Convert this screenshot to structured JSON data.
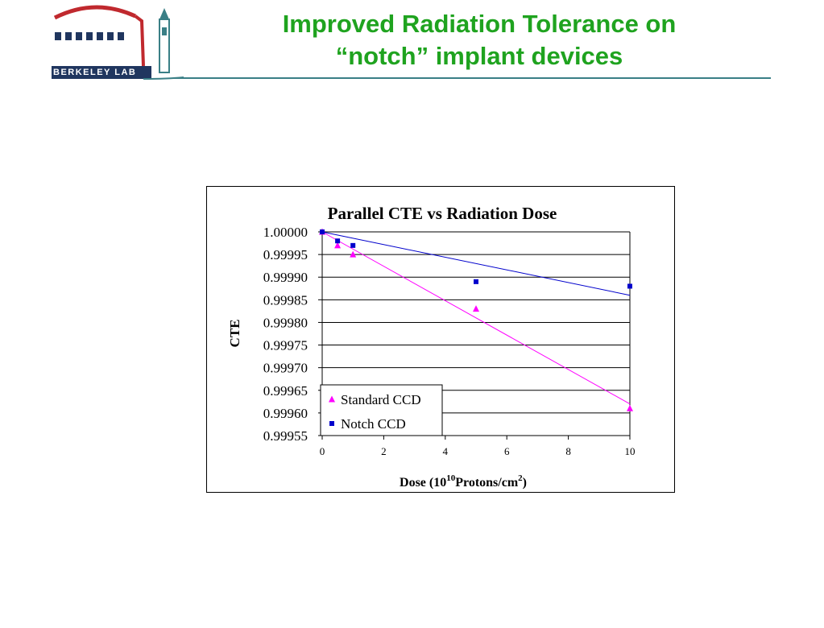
{
  "slide": {
    "title_line1": "Improved Radiation Tolerance on",
    "title_line2": "“notch” implant devices"
  },
  "logo": {
    "text": "BERKELEY LAB",
    "colors": {
      "red": "#c0292e",
      "teal": "#3a7f86",
      "navy": "#20365f"
    }
  },
  "colors": {
    "title": "#1fa31f",
    "standard": "#ff00ff",
    "notch": "#0000cc"
  },
  "chart_data": {
    "type": "scatter",
    "title": "Parallel CTE vs Radiation Dose",
    "ylabel": "CTE",
    "xlabel": {
      "prefix": "Dose (10",
      "sup1": "10",
      "mid": "Protons/cm",
      "sup2": "2",
      "suffix": ")"
    },
    "xlim": [
      0,
      10
    ],
    "ylim": [
      0.99955,
      1.0
    ],
    "xticks": [
      "0",
      "2",
      "4",
      "6",
      "8",
      "10"
    ],
    "yticks": [
      "1.00000",
      "0.99995",
      "0.99990",
      "0.99985",
      "0.99980",
      "0.99975",
      "0.99970",
      "0.99965",
      "0.99960",
      "0.99955"
    ],
    "grid": true,
    "legend_position": "bottom-left",
    "series": [
      {
        "name": "Standard CCD",
        "marker": "triangle",
        "color": "#ff00ff",
        "x": [
          0,
          0.5,
          1,
          5,
          10
        ],
        "y": [
          1.0,
          0.99997,
          0.99995,
          0.99983,
          0.99961
        ],
        "trend": {
          "x": [
            0,
            10
          ],
          "y": [
            1.0,
            0.99962
          ]
        }
      },
      {
        "name": "Notch CCD",
        "marker": "square",
        "color": "#0000cc",
        "x": [
          0,
          0.5,
          1,
          5,
          10
        ],
        "y": [
          1.0,
          0.99998,
          0.99997,
          0.99989,
          0.99988
        ],
        "trend": {
          "x": [
            0,
            10
          ],
          "y": [
            1.0,
            0.99986
          ]
        }
      }
    ]
  }
}
